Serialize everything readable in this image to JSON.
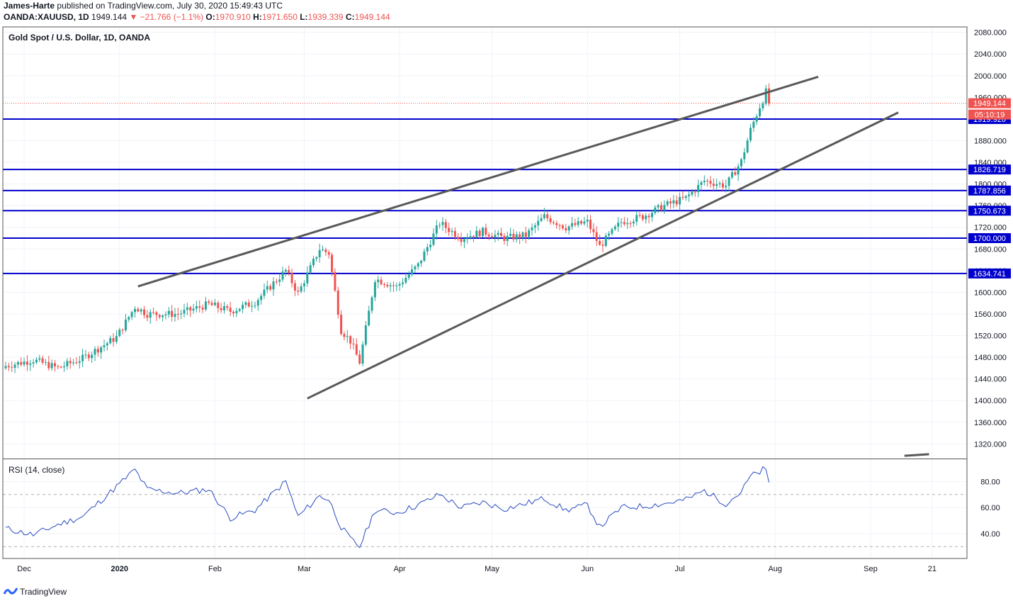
{
  "header": {
    "author": "James-Harte",
    "published": "published on TradingView.com, July 30, 2020 15:49:43 UTC",
    "symbol": "OANDA:XAUUSD, 1D",
    "last": "1949.144",
    "change": "▼ −21.766 (−1.1%)",
    "o_label": "O:",
    "o_value": "1970.910",
    "h_label": "H:",
    "h_value": "1971.650",
    "l_label": "L:",
    "l_value": "1939.339",
    "c_label": "C:",
    "c_value": "1949.144"
  },
  "footer": {
    "brand": "TradingView"
  },
  "colors": {
    "up": "#26a69a",
    "down": "#ef5350",
    "level": "#0000cc",
    "trend": "#595959",
    "rsi": "#2a4bbf",
    "last": "#ef5350"
  },
  "chart_data": [
    {
      "type": "candlestick",
      "title": "Gold Spot / U.S. Dollar, 1D, OANDA",
      "y_ticks": [
        1320,
        1360,
        1400,
        1440,
        1480,
        1520,
        1560,
        1600,
        1640,
        1680,
        1720,
        1760,
        1800,
        1840,
        1880,
        1920,
        1960,
        2000,
        2040,
        2080
      ],
      "y_tick_labels": [
        "1320.000",
        "1360.000",
        "1400.000",
        "1440.000",
        "1480.000",
        "1520.000",
        "1560.000",
        "1600.000",
        "1640.000",
        "1680.000",
        "1720.000",
        "1760.000",
        "1800.000",
        "1840.000",
        "1880.000",
        "1920.000",
        "1960.000",
        "2000.000",
        "2040.000",
        "2080.000"
      ],
      "ylim": [
        1293,
        2090
      ],
      "x_labels": [
        "Dec",
        "2020",
        "Feb",
        "Mar",
        "Apr",
        "May",
        "Jun",
        "Jul",
        "Aug",
        "Sep",
        "21"
      ],
      "x_label_dates": [
        "2019-12-01",
        "2020-01-01",
        "2020-02-01",
        "2020-03-01",
        "2020-04-01",
        "2020-05-01",
        "2020-06-01",
        "2020-07-01",
        "2020-08-01",
        "2020-09-01",
        "2020-09-21"
      ],
      "levels": [
        "1919.926",
        "1826.719",
        "1787.856",
        "1750.673",
        "1700.000",
        "1634.741"
      ],
      "last_price": "1949.144",
      "countdown": "05:10:19",
      "trendlines": [
        {
          "from": [
            "2020-01-07",
            1611
          ],
          "to": [
            "2020-08-15",
            1998
          ]
        },
        {
          "from": [
            "2020-03-02",
            1404
          ],
          "to": [
            "2020-09-10",
            1932
          ]
        },
        {
          "from": [
            "2020-09-12",
            1298
          ],
          "to": [
            "2020-09-20",
            1301
          ]
        }
      ],
      "anchors": [
        [
          "2019-11-25",
          1464
        ],
        [
          "2019-12-04",
          1475
        ],
        [
          "2019-12-12",
          1460
        ],
        [
          "2019-12-20",
          1478
        ],
        [
          "2019-12-31",
          1517
        ],
        [
          "2020-01-06",
          1573
        ],
        [
          "2020-01-10",
          1560
        ],
        [
          "2020-01-20",
          1560
        ],
        [
          "2020-01-30",
          1578
        ],
        [
          "2020-02-06",
          1565
        ],
        [
          "2020-02-14",
          1582
        ],
        [
          "2020-02-24",
          1640
        ],
        [
          "2020-02-28",
          1598
        ],
        [
          "2020-03-06",
          1680
        ],
        [
          "2020-03-09",
          1672
        ],
        [
          "2020-03-13",
          1530
        ],
        [
          "2020-03-16",
          1510
        ],
        [
          "2020-03-19",
          1471
        ],
        [
          "2020-03-24",
          1625
        ],
        [
          "2020-03-31",
          1610
        ],
        [
          "2020-04-07",
          1650
        ],
        [
          "2020-04-14",
          1728
        ],
        [
          "2020-04-21",
          1700
        ],
        [
          "2020-04-28",
          1712
        ],
        [
          "2020-05-05",
          1700
        ],
        [
          "2020-05-12",
          1705
        ],
        [
          "2020-05-18",
          1740
        ],
        [
          "2020-05-25",
          1720
        ],
        [
          "2020-06-01",
          1730
        ],
        [
          "2020-06-05",
          1685
        ],
        [
          "2020-06-12",
          1730
        ],
        [
          "2020-06-19",
          1740
        ],
        [
          "2020-06-26",
          1760
        ],
        [
          "2020-07-03",
          1774
        ],
        [
          "2020-07-09",
          1806
        ],
        [
          "2020-07-16",
          1797
        ],
        [
          "2020-07-21",
          1842
        ],
        [
          "2020-07-24",
          1900
        ],
        [
          "2020-07-27",
          1943
        ],
        [
          "2020-07-28",
          1955
        ],
        [
          "2020-07-29",
          1970
        ],
        [
          "2020-07-30",
          1949
        ]
      ]
    },
    {
      "type": "line",
      "title": "RSI (14, close)",
      "y_ticks": [
        40,
        60,
        80
      ],
      "y_tick_labels": [
        "40.00",
        "60.00",
        "80.00"
      ],
      "bands": [
        30,
        70
      ],
      "ylim": [
        21,
        97
      ],
      "anchors": [
        [
          "2019-11-25",
          44
        ],
        [
          "2019-12-04",
          39
        ],
        [
          "2019-12-12",
          47
        ],
        [
          "2019-12-20",
          53
        ],
        [
          "2019-12-31",
          76
        ],
        [
          "2020-01-06",
          89
        ],
        [
          "2020-01-10",
          74
        ],
        [
          "2020-01-20",
          71
        ],
        [
          "2020-01-30",
          74
        ],
        [
          "2020-02-06",
          52
        ],
        [
          "2020-02-14",
          58
        ],
        [
          "2020-02-24",
          80
        ],
        [
          "2020-02-28",
          53
        ],
        [
          "2020-03-06",
          69
        ],
        [
          "2020-03-09",
          66
        ],
        [
          "2020-03-13",
          45
        ],
        [
          "2020-03-16",
          36
        ],
        [
          "2020-03-19",
          30
        ],
        [
          "2020-03-24",
          58
        ],
        [
          "2020-03-31",
          56
        ],
        [
          "2020-04-07",
          62
        ],
        [
          "2020-04-14",
          70
        ],
        [
          "2020-04-21",
          60
        ],
        [
          "2020-04-28",
          64
        ],
        [
          "2020-05-05",
          59
        ],
        [
          "2020-05-12",
          63
        ],
        [
          "2020-05-18",
          67
        ],
        [
          "2020-05-25",
          58
        ],
        [
          "2020-06-01",
          62
        ],
        [
          "2020-06-05",
          45
        ],
        [
          "2020-06-12",
          60
        ],
        [
          "2020-06-19",
          61
        ],
        [
          "2020-06-26",
          63
        ],
        [
          "2020-07-03",
          66
        ],
        [
          "2020-07-09",
          73
        ],
        [
          "2020-07-16",
          63
        ],
        [
          "2020-07-21",
          72
        ],
        [
          "2020-07-24",
          84
        ],
        [
          "2020-07-27",
          87
        ],
        [
          "2020-07-28",
          89
        ],
        [
          "2020-07-29",
          88
        ],
        [
          "2020-07-30",
          78
        ]
      ]
    }
  ]
}
